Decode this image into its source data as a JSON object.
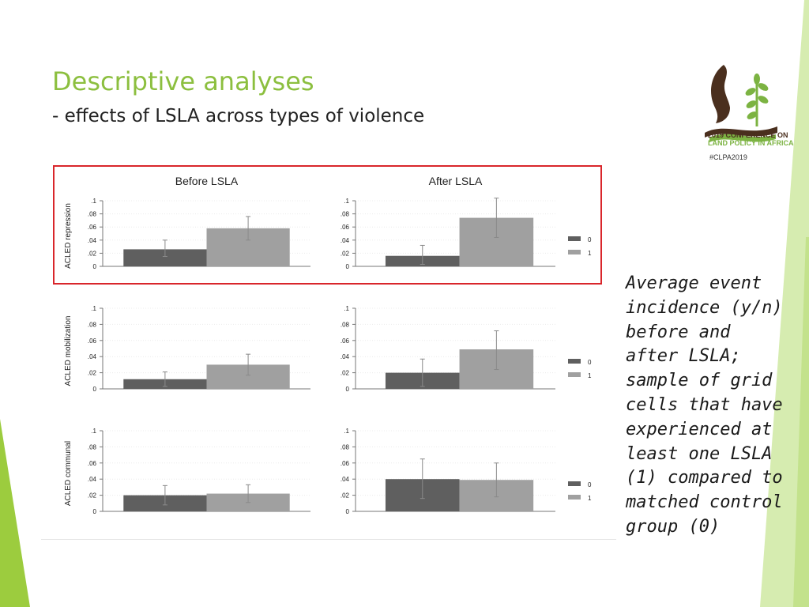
{
  "slide": {
    "title": "Descriptive analyses",
    "subtitle": "- effects of LSLA across types of violence",
    "caption": "Average event incidence (y/n) before and after LSLA; sample of grid cells that have experienced at least one LSLA (1) compared to matched control group (0)",
    "logo": {
      "line1": "2019 CONFERENCE ON",
      "line2": "LAND POLICY IN AFRICA"
    },
    "hashtag": "#CLPA2019"
  },
  "colors": {
    "title": "#8cbf3f",
    "accent_stripe": "#9ccc3e",
    "light_stripe": "#d6ecb0",
    "highlight_border": "#d9262b",
    "bar_0": "#5f5f5f",
    "bar_1": "#a0a0a0",
    "logo_brown": "#4a2f1e",
    "logo_green": "#7cb342"
  },
  "chart_data": {
    "type": "bar",
    "column_titles": [
      "Before LSLA",
      "After LSLA"
    ],
    "row_labels": [
      "ACLED repression",
      "ACLED mobilization",
      "ACLED communal"
    ],
    "yticks": [
      0,
      0.02,
      0.04,
      0.06,
      0.08,
      0.1
    ],
    "ytick_labels": [
      "0",
      ".02",
      ".04",
      ".06",
      ".08",
      ".1"
    ],
    "ylim": [
      0,
      0.1
    ],
    "legend": [
      "0",
      "1"
    ],
    "legend_position": "right",
    "panels": [
      {
        "row": 0,
        "col": 0,
        "values": [
          0.026,
          0.058
        ],
        "ci": [
          [
            0.015,
            0.04
          ],
          [
            0.04,
            0.076
          ]
        ]
      },
      {
        "row": 0,
        "col": 1,
        "values": [
          0.016,
          0.074
        ],
        "ci": [
          [
            0.003,
            0.032
          ],
          [
            0.044,
            0.104
          ]
        ]
      },
      {
        "row": 1,
        "col": 0,
        "values": [
          0.012,
          0.03
        ],
        "ci": [
          [
            0.003,
            0.021
          ],
          [
            0.017,
            0.043
          ]
        ]
      },
      {
        "row": 1,
        "col": 1,
        "values": [
          0.02,
          0.049
        ],
        "ci": [
          [
            0.003,
            0.037
          ],
          [
            0.024,
            0.072
          ]
        ]
      },
      {
        "row": 2,
        "col": 0,
        "values": [
          0.02,
          0.022
        ],
        "ci": [
          [
            0.008,
            0.032
          ],
          [
            0.011,
            0.033
          ]
        ]
      },
      {
        "row": 2,
        "col": 1,
        "values": [
          0.04,
          0.039
        ],
        "ci": [
          [
            0.016,
            0.065
          ],
          [
            0.018,
            0.06
          ]
        ]
      }
    ]
  }
}
